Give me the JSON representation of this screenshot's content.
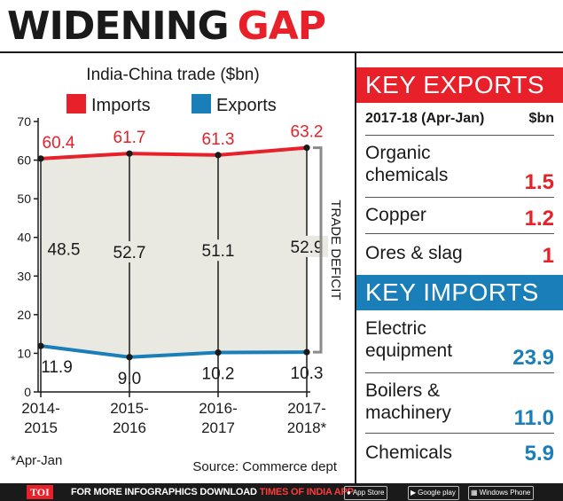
{
  "title": {
    "part1": "WIDENING",
    "part2": "GAP"
  },
  "chart_data": {
    "type": "line",
    "title": "India-China trade ($bn)",
    "categories": [
      "2014-2015",
      "2015-2016",
      "2016-2017",
      "2017-2018*"
    ],
    "category_labels": [
      [
        "2014-",
        "2015"
      ],
      [
        "2015-",
        "2016"
      ],
      [
        "2016-",
        "2017"
      ],
      [
        "2017-",
        "2018*"
      ]
    ],
    "series": [
      {
        "name": "Imports",
        "color": "#e8202a",
        "values": [
          60.4,
          61.7,
          61.3,
          63.2
        ]
      },
      {
        "name": "Exports",
        "color": "#1a7fb8",
        "values": [
          11.9,
          9.0,
          10.2,
          10.3
        ]
      }
    ],
    "deficit_values": [
      48.5,
      52.7,
      51.1,
      52.9
    ],
    "value_labels": {
      "imports": [
        "60.4",
        "61.7",
        "61.3",
        "63.2"
      ],
      "exports": [
        "11.9",
        "9.0",
        "10.2",
        "10.3"
      ],
      "deficit": [
        "48.5",
        "52.7",
        "51.1",
        "52.9"
      ]
    },
    "yticks": [
      0,
      10,
      20,
      30,
      40,
      50,
      60,
      70
    ],
    "ylim": [
      0,
      70
    ],
    "gap_fill": "#e9e9e2",
    "bracket_label": "TRADE DEFICIT",
    "legend_position": "top",
    "footnote": "*Apr-Jan",
    "source": "Source: Commerce dept"
  },
  "key_exports": {
    "heading": "KEY EXPORTS",
    "period": "2017-18 (Apr-Jan)",
    "unit": "$bn",
    "color": "#e8202a",
    "items": [
      {
        "label": "Organic chemicals",
        "value": "1.5"
      },
      {
        "label": "Copper",
        "value": "1.2"
      },
      {
        "label": "Ores & slag",
        "value": "1"
      }
    ]
  },
  "key_imports": {
    "heading": "KEY IMPORTS",
    "color": "#1a7fb8",
    "items": [
      {
        "label": "Electric equipment",
        "value": "23.9"
      },
      {
        "label": "Boilers & machinery",
        "value": "11.0"
      },
      {
        "label": "Chemicals",
        "value": "5.9"
      }
    ]
  },
  "footer": {
    "logo": "TOI",
    "text_white": "FOR MORE  INFOGRAPHICS DOWNLOAD ",
    "text_red": "TIMES OF INDIA  APP",
    "badges": [
      "App Store",
      "Google play",
      "Windows Phone"
    ]
  }
}
